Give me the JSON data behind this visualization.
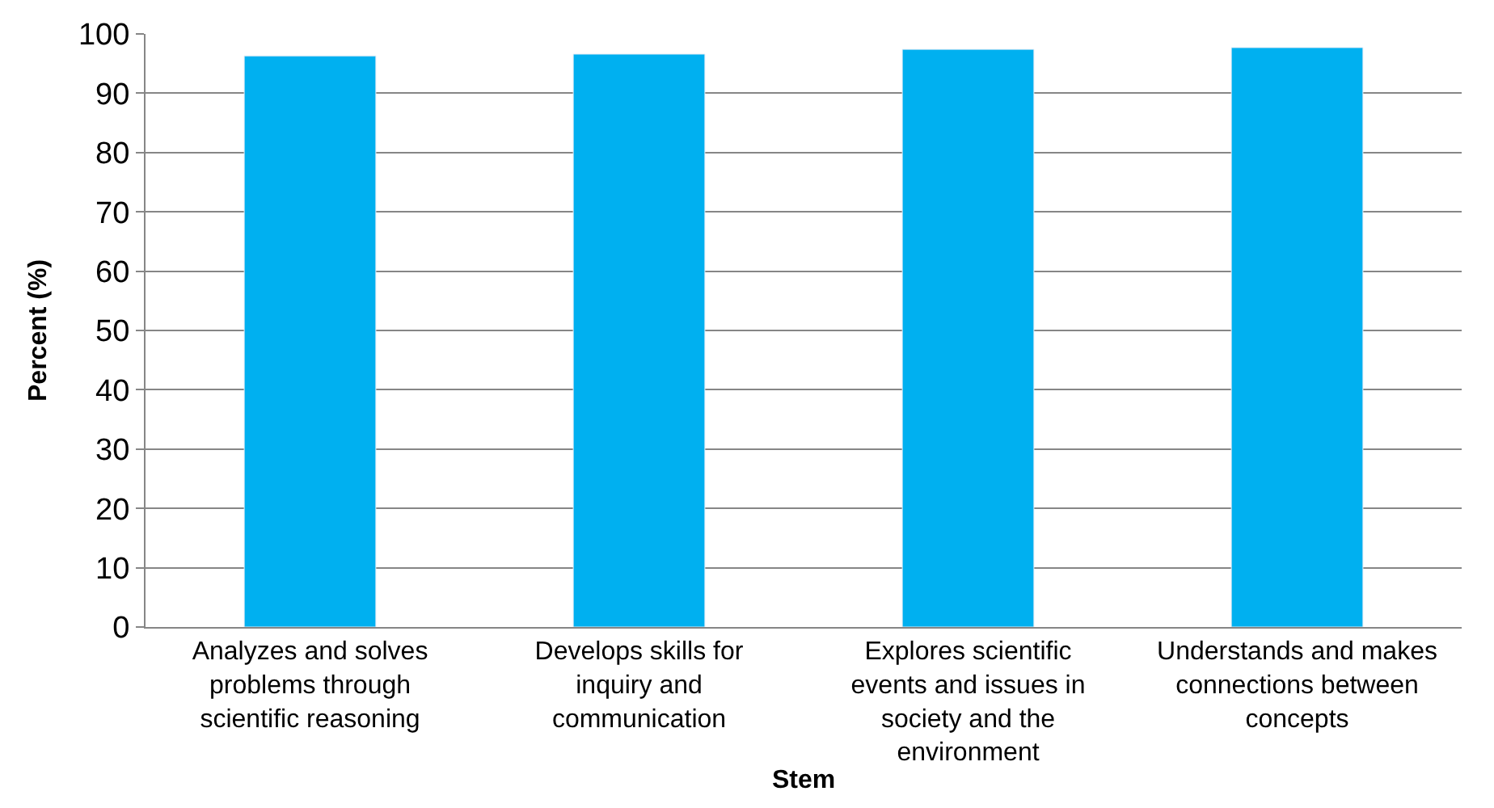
{
  "chart_data": {
    "type": "bar",
    "xlabel": "Stem",
    "ylabel": "Percent (%)",
    "categories": [
      "Analyzes and solves problems through scientific reasoning",
      "Develops skills for inquiry and communication",
      "Explores scientific events and issues in society and the environment",
      "Understands and makes connections between concepts"
    ],
    "values": [
      96.3,
      96.6,
      97.4,
      97.7
    ],
    "color": "#00b0f0",
    "ylim": [
      0,
      100
    ],
    "yticks": [
      0,
      10,
      20,
      30,
      40,
      50,
      60,
      70,
      80,
      90,
      100
    ],
    "grid": "y"
  }
}
